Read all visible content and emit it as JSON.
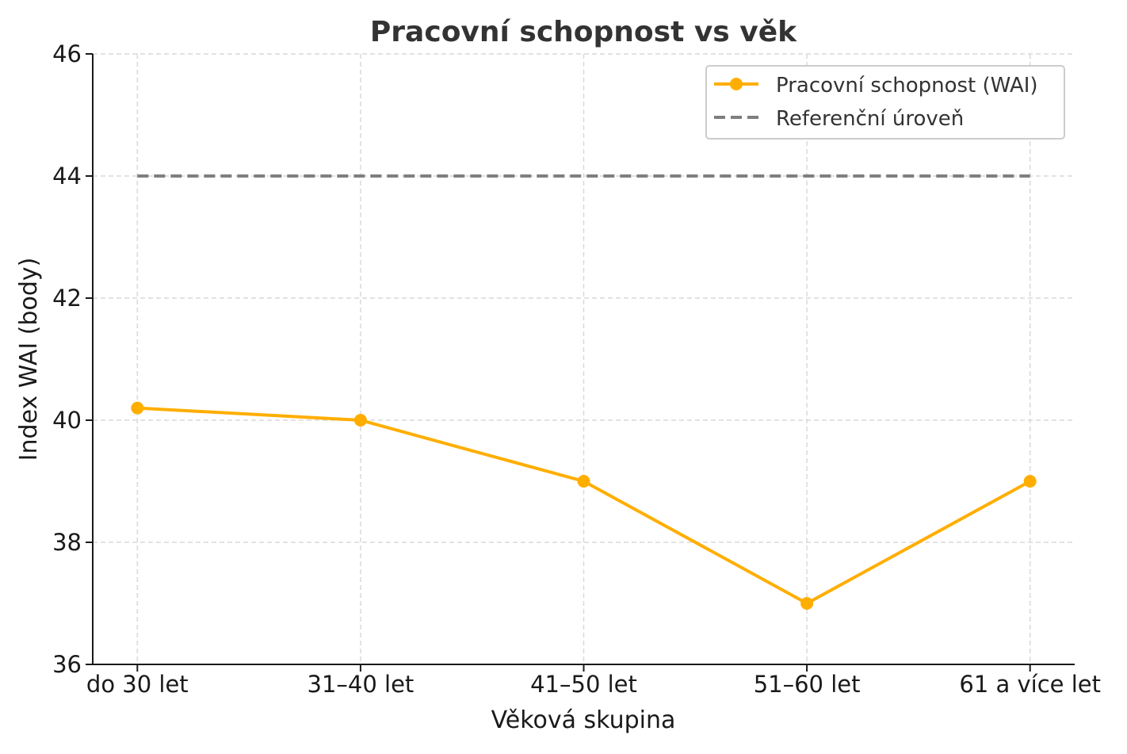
{
  "chart_data": {
    "type": "line",
    "title": "Pracovní schopnost vs věk",
    "xlabel": "Věková skupina",
    "ylabel": "Index WAI (body)",
    "categories": [
      "do 30 let",
      "31–40 let",
      "41–50 let",
      "51–60 let",
      "61 a více let"
    ],
    "series": [
      {
        "name": "Pracovní schopnost (WAI)",
        "values": [
          40.2,
          40.0,
          39.0,
          37.0,
          39.0
        ],
        "color": "#FFAE00",
        "style": "solid-marker"
      },
      {
        "name": "Referenční úroveň",
        "values": [
          44,
          44,
          44,
          44,
          44
        ],
        "color": "#7f7f7f",
        "style": "dashed"
      }
    ],
    "ylim": [
      36,
      46
    ],
    "yticks": [
      36,
      38,
      40,
      42,
      44,
      46
    ],
    "grid": true,
    "legend_position": "top-right"
  }
}
